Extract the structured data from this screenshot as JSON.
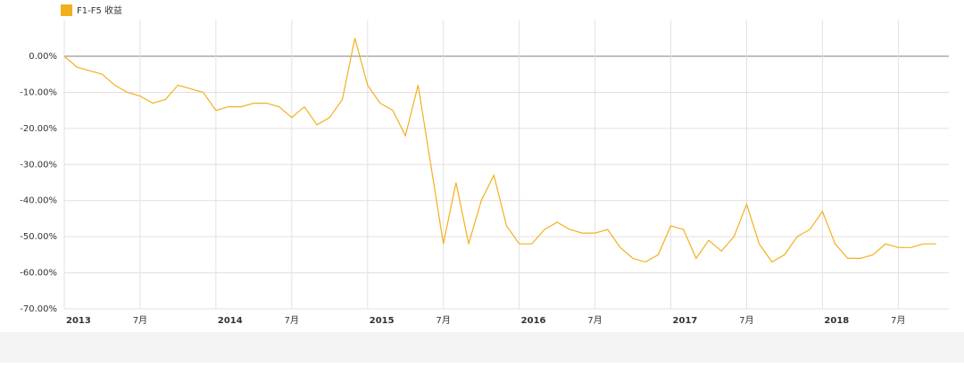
{
  "chart_data": {
    "type": "line",
    "legend": "top-left",
    "x": [
      "2013-01",
      "2013-02",
      "2013-03",
      "2013-04",
      "2013-05",
      "2013-06",
      "2013-07",
      "2013-08",
      "2013-09",
      "2013-10",
      "2013-11",
      "2013-12",
      "2014-01",
      "2014-02",
      "2014-03",
      "2014-04",
      "2014-05",
      "2014-06",
      "2014-07",
      "2014-08",
      "2014-09",
      "2014-10",
      "2014-11",
      "2014-12",
      "2015-01",
      "2015-02",
      "2015-03",
      "2015-04",
      "2015-05",
      "2015-06",
      "2015-07",
      "2015-08",
      "2015-09",
      "2015-10",
      "2015-11",
      "2015-12",
      "2016-01",
      "2016-02",
      "2016-03",
      "2016-04",
      "2016-05",
      "2016-06",
      "2016-07",
      "2016-08",
      "2016-09",
      "2016-10",
      "2016-11",
      "2016-12",
      "2017-01",
      "2017-02",
      "2017-03",
      "2017-04",
      "2017-05",
      "2017-06",
      "2017-07",
      "2017-08",
      "2017-09",
      "2017-10",
      "2017-11",
      "2017-12",
      "2018-01",
      "2018-02",
      "2018-03",
      "2018-04",
      "2018-05",
      "2018-06",
      "2018-07",
      "2018-08",
      "2018-09",
      "2018-10"
    ],
    "series": [
      {
        "name": "F1-F5 收益",
        "color": "#f2b01e",
        "values": [
          0,
          -3,
          -4,
          -5,
          -8,
          -10,
          -11,
          -13,
          -12,
          -8,
          -9,
          -10,
          -15,
          -14,
          -14,
          -13,
          -13,
          -14,
          -17,
          -14,
          -19,
          -17,
          -12,
          5,
          -8,
          -13,
          -15,
          -22,
          -8,
          -30,
          -52,
          -35,
          -52,
          -40,
          -33,
          -47,
          -52,
          -52,
          -48,
          -46,
          -48,
          -49,
          -49,
          -48,
          -53,
          -56,
          -57,
          -55,
          -47,
          -48,
          -56,
          -51,
          -54,
          -50,
          -41,
          -52,
          -57,
          -55,
          -50,
          -48,
          -43,
          -52,
          -56,
          -56,
          -55,
          -52,
          -53,
          -53,
          -52,
          -52
        ]
      }
    ],
    "xlim": [
      "2013-01",
      "2018-11"
    ],
    "xticks": [
      {
        "value": "2013-01",
        "label": "2013"
      },
      {
        "value": "2013-07",
        "label": "7月"
      },
      {
        "value": "2014-01",
        "label": "2014"
      },
      {
        "value": "2014-07",
        "label": "7月"
      },
      {
        "value": "2015-01",
        "label": "2015"
      },
      {
        "value": "2015-07",
        "label": "7月"
      },
      {
        "value": "2016-01",
        "label": "2016"
      },
      {
        "value": "2016-07",
        "label": "7月"
      },
      {
        "value": "2017-01",
        "label": "2017"
      },
      {
        "value": "2017-07",
        "label": "7月"
      },
      {
        "value": "2018-01",
        "label": "2018"
      },
      {
        "value": "2018-07",
        "label": "7月"
      }
    ],
    "ylim": [
      -70,
      10
    ],
    "yticks": [
      {
        "value": 0,
        "label": "0.00%"
      },
      {
        "value": -10,
        "label": "-10.00%"
      },
      {
        "value": -20,
        "label": "-20.00%"
      },
      {
        "value": -30,
        "label": "-30.00%"
      },
      {
        "value": -40,
        "label": "-40.00%"
      },
      {
        "value": -50,
        "label": "-50.00%"
      },
      {
        "value": -60,
        "label": "-60.00%"
      },
      {
        "value": -70,
        "label": "-70.00%"
      }
    ],
    "grid": true
  }
}
